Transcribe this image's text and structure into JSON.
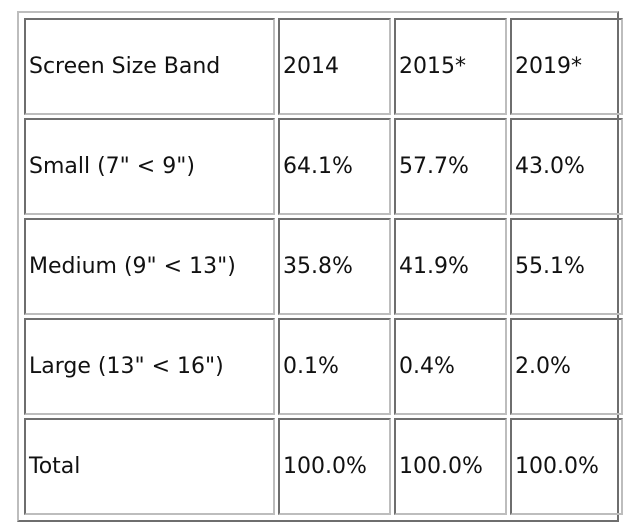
{
  "table": {
    "headers": [
      "Screen Size Band",
      "2014",
      "2015*",
      "2019*"
    ],
    "rows": [
      [
        "Small (7\" < 9\")",
        "64.1%",
        "57.7%",
        "43.0%"
      ],
      [
        "Medium (9\" < 13\")",
        "35.8%",
        "41.9%",
        "55.1%"
      ],
      [
        "Large (13\" < 16\")",
        "0.1%",
        "0.4%",
        "2.0%"
      ],
      [
        "Total",
        "100.0%",
        "100.0%",
        "100.0%"
      ]
    ]
  }
}
